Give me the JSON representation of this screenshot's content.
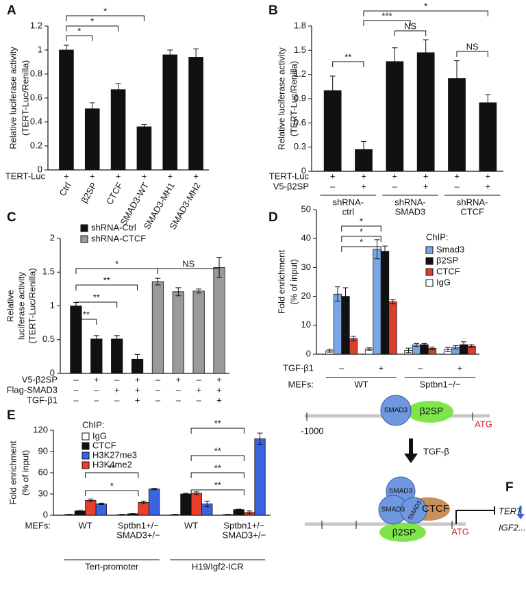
{
  "chart_data": [
    {
      "type": "bar",
      "label": "A",
      "y_label": [
        "Relative luciferase activity",
        "(TERT-Luc/Renilla)"
      ],
      "categories": [
        "Ctrl",
        "β2SP",
        "CTCF",
        "SMAD3-WT",
        "SMAD3-MH1",
        "SMAD3-MH2"
      ],
      "values": [
        1.0,
        0.51,
        0.67,
        0.36,
        0.96,
        0.94
      ],
      "errors": [
        0.04,
        0.05,
        0.05,
        0.02,
        0.04,
        0.07
      ],
      "color": "#111111",
      "ylim": [
        0,
        1.2
      ],
      "yticks": [
        0,
        0.2,
        0.4,
        0.6,
        0.8,
        1,
        1.2
      ],
      "rows": [
        {
          "name": "TERT-Luc",
          "marks": [
            "+",
            "+",
            "+",
            "+",
            "+",
            "+"
          ]
        }
      ],
      "annotations": [
        "*",
        "*",
        "*"
      ]
    },
    {
      "type": "bar",
      "label": "B",
      "y_label": [
        "Relative luciferase activity",
        "(TERT-Luc/Renilla)"
      ],
      "categories": [
        null,
        null,
        null,
        null,
        null,
        null
      ],
      "values": [
        1.0,
        0.27,
        1.36,
        1.47,
        1.15,
        0.85
      ],
      "errors": [
        0.18,
        0.1,
        0.17,
        0.16,
        0.22,
        0.1
      ],
      "color": "#111111",
      "ylim": [
        0,
        1.8
      ],
      "yticks": [
        0,
        0.3,
        0.6,
        0.9,
        1.2,
        1.5,
        1.8
      ],
      "rows": [
        {
          "name": "TERT-Luc",
          "marks": [
            "+",
            "+",
            "+",
            "+",
            "+",
            "+"
          ]
        },
        {
          "name": "V5-β2SP",
          "marks": [
            "–",
            "+",
            "–",
            "+",
            "–",
            "+"
          ]
        },
        {
          "marks": [
            [
              "shRNA-",
              "ctrl"
            ],
            [
              "shRNA-",
              "SMAD3"
            ],
            [
              "shRNA-",
              "CTCF"
            ]
          ]
        }
      ],
      "annotations": [
        "*",
        "***",
        "NS",
        "NS",
        "**"
      ]
    },
    {
      "type": "bar",
      "label": "C",
      "y_label": [
        "Relative",
        "luciferase activity",
        "(TERT-Luc/Renilla)"
      ],
      "categories": [
        null,
        null,
        null,
        null,
        null,
        null,
        null,
        null
      ],
      "series": [
        {
          "name": "shRNA-Ctrl",
          "color": "#111111",
          "values": [
            1.0,
            0.51,
            0.51,
            0.21,
            null,
            null,
            null,
            null
          ],
          "errors": [
            0.05,
            0.05,
            0.05,
            0.07,
            null,
            null,
            null,
            null
          ]
        },
        {
          "name": "shRNA-CTCF",
          "color": "#9a9a9a",
          "values": [
            null,
            null,
            null,
            null,
            1.36,
            1.21,
            1.22,
            1.57
          ],
          "errors": [
            null,
            null,
            null,
            null,
            0.05,
            0.06,
            0.03,
            0.15
          ]
        }
      ],
      "ylim": [
        0,
        2
      ],
      "yticks": [
        0,
        0.5,
        1,
        1.5,
        2
      ],
      "rows": [
        {
          "name": "V5-β2SP",
          "marks": [
            "–",
            "+",
            "–",
            "+",
            "–",
            "+",
            "–",
            "+"
          ]
        },
        {
          "name": "Flag-SMAD3",
          "marks": [
            "–",
            "–",
            "+",
            "+",
            "–",
            "–",
            "+",
            "+"
          ]
        },
        {
          "name": "TGF-β1",
          "marks": [
            "–",
            "–",
            "–",
            "+",
            "–",
            "–",
            "–",
            "+"
          ]
        }
      ],
      "annotations": [
        "**",
        "**",
        "**",
        "*",
        "NS"
      ]
    },
    {
      "type": "bar",
      "label": "D",
      "y_label": [
        "Fold enrichment",
        "(% of input)"
      ],
      "legend_title": "ChIP:",
      "categories": [
        null,
        null,
        null,
        null
      ],
      "series": [
        {
          "name": "Smad3",
          "color": "#7aa6e8",
          "values": [
            20.8,
            36.3,
            3.2,
            2.4
          ],
          "errors": [
            2.5,
            3.3,
            0.5,
            0.6
          ]
        },
        {
          "name": "β2SP",
          "color": "#111111",
          "values": [
            20.0,
            35.6,
            3.3,
            3.3
          ],
          "errors": [
            3,
            1.8,
            0.4,
            1
          ]
        },
        {
          "name": "CTCF",
          "color": "#d9402b",
          "values": [
            5.4,
            18.1,
            2.0,
            2.8
          ],
          "errors": [
            0.8,
            0.7,
            0.5,
            0.5
          ]
        },
        {
          "name": "IgG",
          "color": "#ffffff",
          "values": [
            1.2,
            1.8,
            1.3,
            1.6
          ],
          "errors": [
            0.5,
            0.4,
            0.8,
            0.7
          ]
        }
      ],
      "ylim": [
        0,
        50
      ],
      "yticks": [
        0,
        10,
        20,
        30,
        40,
        50
      ],
      "rows": [
        {
          "name": "TGF-β1",
          "marks": [
            "–",
            "+",
            "–",
            "+"
          ]
        },
        {
          "name": "MEFs:",
          "marks": [
            "WT",
            "Sptbn1−/−"
          ]
        }
      ],
      "annotations": [
        "*",
        "*",
        "*"
      ]
    },
    {
      "type": "bar",
      "label": "E",
      "y_label": [
        "Fold enrichment",
        "(% of input)"
      ],
      "legend_title": "ChIP:",
      "categories": [
        null,
        null,
        null,
        null
      ],
      "series": [
        {
          "name": "IgG",
          "color": "#ffffff",
          "values": [
            1,
            1,
            1,
            1
          ],
          "errors": [
            0.3,
            0.3,
            0.3,
            0.3
          ]
        },
        {
          "name": "CTCF",
          "color": "#111111",
          "values": [
            6,
            2,
            30,
            8
          ],
          "errors": [
            0.5,
            0.3,
            1,
            0.6
          ]
        },
        {
          "name": "H3K27me3",
          "color": "#3a63e0",
          "values": [
            16,
            37,
            16,
            108
          ],
          "errors": [
            1,
            1,
            4,
            8
          ]
        },
        {
          "name": "H3K4me2",
          "color": "#e8402a",
          "values": [
            21,
            18,
            31,
            4
          ],
          "errors": [
            2,
            2,
            2,
            2
          ]
        }
      ],
      "ylim": [
        0,
        120
      ],
      "yticks": [
        0,
        30,
        60,
        90,
        120
      ],
      "rows": [
        {
          "name": "MEFs:",
          "marks": [
            "WT",
            [
              "Sptbn1+/−",
              "SMAD3+/−"
            ],
            "WT",
            [
              "Sptbn1+/−",
              "SMAD3+/−"
            ]
          ]
        },
        {
          "marks": [
            "Tert-promoter",
            "H19/Igf2-ICR"
          ]
        }
      ],
      "annotations": [
        "**",
        "*",
        "**",
        "**",
        "**",
        "**"
      ]
    }
  ],
  "diagram": {
    "label": "F",
    "top": {
      "smad3": "SMAD3",
      "b2sp": "β2SP",
      "atg": "ATG",
      "position": "-1000"
    },
    "signal": "TGF-β",
    "bottom": {
      "smad3": [
        "SMAD3",
        "SMAD3",
        "SMAD3"
      ],
      "ctcf": "CTCF",
      "b2sp": "β2SP",
      "atg": "ATG",
      "genes": [
        "TERT",
        "IGF2..."
      ]
    }
  }
}
